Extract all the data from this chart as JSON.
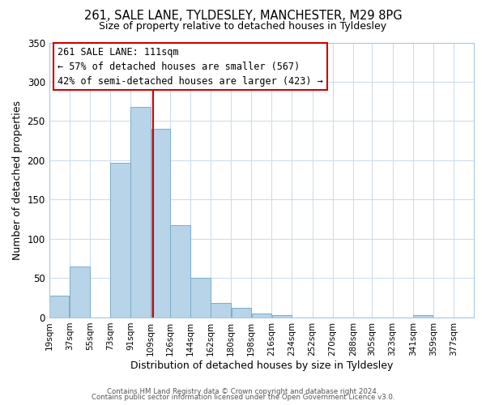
{
  "title": "261, SALE LANE, TYLDESLEY, MANCHESTER, M29 8PG",
  "subtitle": "Size of property relative to detached houses in Tyldesley",
  "xlabel": "Distribution of detached houses by size in Tyldesley",
  "ylabel": "Number of detached properties",
  "bar_left_edges": [
    19,
    37,
    55,
    73,
    91,
    109,
    126,
    144,
    162,
    180,
    198,
    216,
    234,
    252,
    270,
    288,
    305,
    323,
    341,
    359
  ],
  "bar_widths": [
    18,
    18,
    18,
    18,
    18,
    17,
    18,
    18,
    18,
    18,
    18,
    18,
    18,
    18,
    18,
    17,
    18,
    18,
    18,
    18
  ],
  "bar_heights": [
    28,
    65,
    0,
    197,
    268,
    240,
    117,
    50,
    19,
    12,
    5,
    3,
    0,
    0,
    0,
    0,
    0,
    0,
    3,
    0
  ],
  "tick_labels": [
    "19sqm",
    "37sqm",
    "55sqm",
    "73sqm",
    "91sqm",
    "109sqm",
    "126sqm",
    "144sqm",
    "162sqm",
    "180sqm",
    "198sqm",
    "216sqm",
    "234sqm",
    "252sqm",
    "270sqm",
    "288sqm",
    "305sqm",
    "323sqm",
    "341sqm",
    "359sqm",
    "377sqm"
  ],
  "tick_positions": [
    19,
    37,
    55,
    73,
    91,
    109,
    126,
    144,
    162,
    180,
    198,
    216,
    234,
    252,
    270,
    288,
    305,
    323,
    341,
    359,
    377
  ],
  "bar_color": "#b8d4e8",
  "bar_edge_color": "#7aaec8",
  "vline_x": 111,
  "vline_color": "#cc0000",
  "ylim": [
    0,
    350
  ],
  "yticks": [
    0,
    50,
    100,
    150,
    200,
    250,
    300,
    350
  ],
  "annotation_title": "261 SALE LANE: 111sqm",
  "annotation_line1": "← 57% of detached houses are smaller (567)",
  "annotation_line2": "42% of semi-detached houses are larger (423) →",
  "footer1": "Contains HM Land Registry data © Crown copyright and database right 2024.",
  "footer2": "Contains public sector information licensed under the Open Government Licence v3.0.",
  "bg_color": "#ffffff",
  "grid_color": "#ccdded"
}
